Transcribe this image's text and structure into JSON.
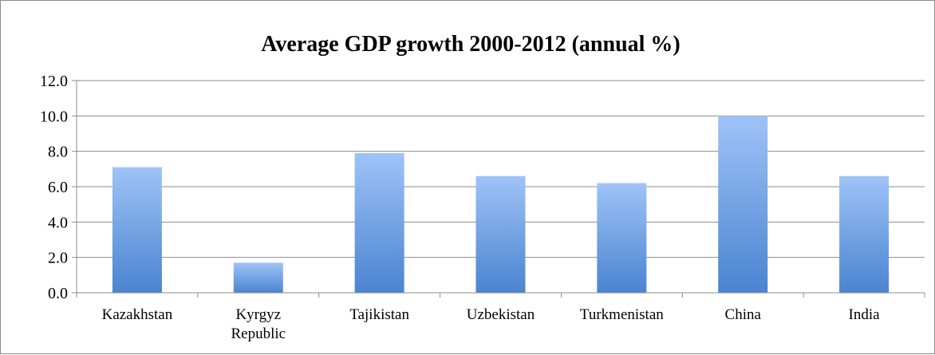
{
  "chart_data": {
    "type": "bar",
    "title": "Average GDP growth 2000-2012 (annual %)",
    "xlabel": "",
    "ylabel": "",
    "categories": [
      [
        "Kazakhstan"
      ],
      [
        "Kyrgyz",
        "Republic"
      ],
      [
        "Tajikistan"
      ],
      [
        "Uzbekistan"
      ],
      [
        "Turkmenistan"
      ],
      [
        "China"
      ],
      [
        "India"
      ]
    ],
    "values": [
      7.1,
      1.7,
      7.9,
      6.6,
      6.2,
      10.0,
      6.6
    ],
    "ylim": [
      0,
      12
    ],
    "yticks": [
      "0.0",
      "2.0",
      "4.0",
      "6.0",
      "8.0",
      "10.0",
      "12.0"
    ],
    "grid": true,
    "legend": "none",
    "colors": {
      "bar_top": "#9fc3f7",
      "bar_bottom": "#4a84d0",
      "grid": "#8c8c8c",
      "axis": "#8c8c8c"
    }
  }
}
